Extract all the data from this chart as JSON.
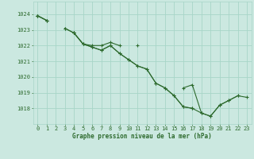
{
  "title": "Graphe pression niveau de la mer (hPa)",
  "background_color": "#cbe8e0",
  "grid_color": "#a8d5c8",
  "line_color": "#2d6a2d",
  "xlim": [
    -0.5,
    23.5
  ],
  "ylim": [
    1017.0,
    1024.8
  ],
  "yticks": [
    1018,
    1019,
    1020,
    1021,
    1022,
    1023,
    1024
  ],
  "xticks": [
    0,
    1,
    2,
    3,
    4,
    5,
    6,
    7,
    8,
    9,
    10,
    11,
    12,
    13,
    14,
    15,
    16,
    17,
    18,
    19,
    20,
    21,
    22,
    23
  ],
  "series": [
    [
      1023.9,
      1023.6,
      null,
      null,
      1022.8,
      1022.1,
      1022.0,
      1022.0,
      1022.2,
      1022.0,
      null,
      1022.0,
      null,
      null,
      null,
      null,
      null,
      null,
      null,
      null,
      null,
      null,
      null,
      null
    ],
    [
      1023.9,
      1023.6,
      null,
      1023.1,
      1022.8,
      1022.1,
      1021.9,
      1021.7,
      1022.0,
      1021.5,
      1021.1,
      1020.7,
      1020.5,
      1019.6,
      1019.3,
      1018.8,
      1018.1,
      1018.0,
      null,
      null,
      null,
      null,
      null,
      null
    ],
    [
      1023.9,
      1023.6,
      null,
      1023.1,
      1022.8,
      1022.1,
      1021.9,
      1021.7,
      1022.0,
      1021.5,
      1021.1,
      1020.7,
      1020.5,
      1019.6,
      1019.3,
      1018.8,
      1018.1,
      1018.0,
      1017.7,
      1017.5,
      1018.2,
      1018.5,
      1018.8,
      null
    ],
    [
      1023.9,
      null,
      null,
      null,
      1022.8,
      null,
      null,
      null,
      null,
      null,
      null,
      null,
      null,
      null,
      null,
      null,
      1019.3,
      1019.5,
      1017.7,
      1017.5,
      1018.2,
      1018.5,
      1018.8,
      1018.7
    ]
  ],
  "xlabel_fontsize": 5.5,
  "tick_fontsize": 5.0,
  "linewidth": 0.8,
  "markersize": 2.5
}
